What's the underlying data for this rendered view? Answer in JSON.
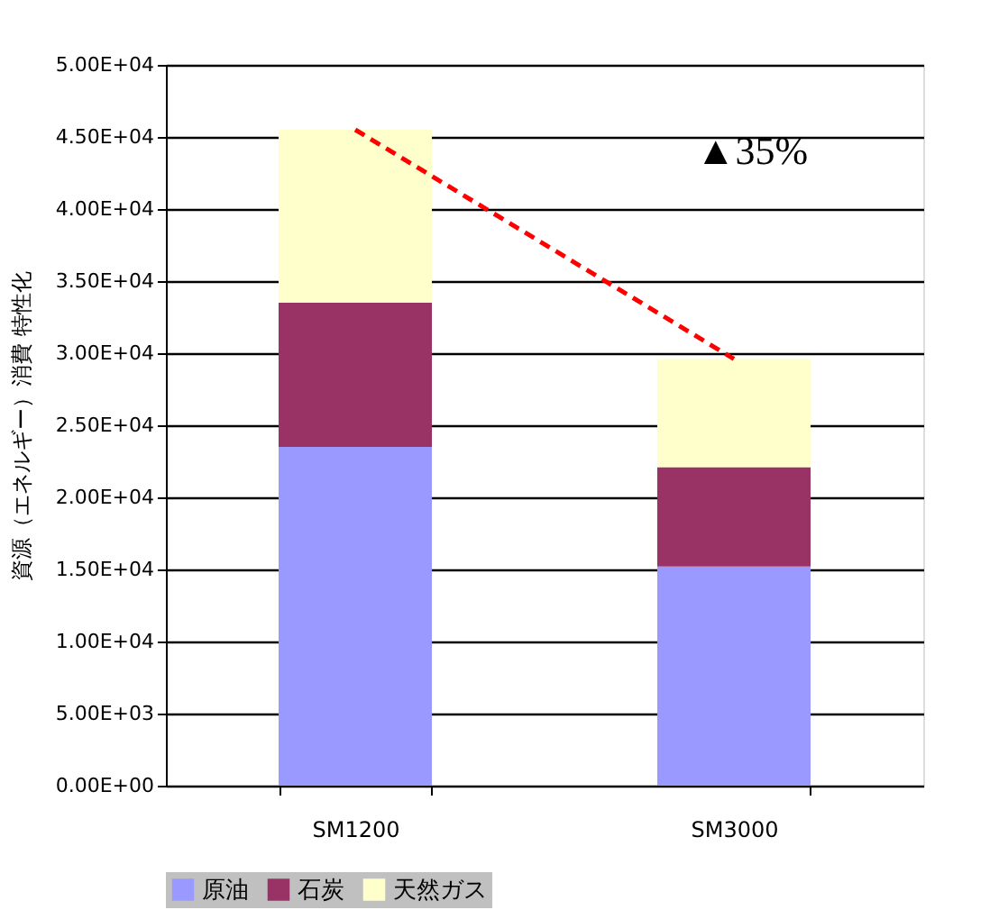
{
  "chart_data": {
    "type": "bar",
    "stacked": true,
    "ylabel": "資源（エネルギー）消費 特性化",
    "categories": [
      "SM1200",
      "SM3000"
    ],
    "series": [
      {
        "name": "原油",
        "color": "#9999ff",
        "values": [
          23500,
          15200
        ]
      },
      {
        "name": "石炭",
        "color": "#993366",
        "values": [
          10000,
          6900
        ]
      },
      {
        "name": "天然ガス",
        "color": "#ffffcc",
        "values": [
          12000,
          7500
        ]
      },
      {
        "type": "line",
        "color": "#ff0000",
        "line_style": "dashed",
        "values": [
          45500,
          29600
        ]
      }
    ],
    "ylim": [
      0,
      50000
    ],
    "yticks": [
      {
        "value": 0,
        "label": "0.00E+00"
      },
      {
        "value": 5000,
        "label": "5.00E+03"
      },
      {
        "value": 10000,
        "label": "1.00E+04"
      },
      {
        "value": 15000,
        "label": "1.50E+04"
      },
      {
        "value": 20000,
        "label": "2.00E+04"
      },
      {
        "value": 25000,
        "label": "2.50E+04"
      },
      {
        "value": 30000,
        "label": "3.00E+04"
      },
      {
        "value": 35000,
        "label": "3.50E+04"
      },
      {
        "value": 40000,
        "label": "4.00E+04"
      },
      {
        "value": 45000,
        "label": "4.50E+04"
      },
      {
        "value": 50000,
        "label": "5.00E+04"
      }
    ],
    "grid": "y",
    "legend": "bottom",
    "annotations": [
      "▲35%"
    ]
  }
}
